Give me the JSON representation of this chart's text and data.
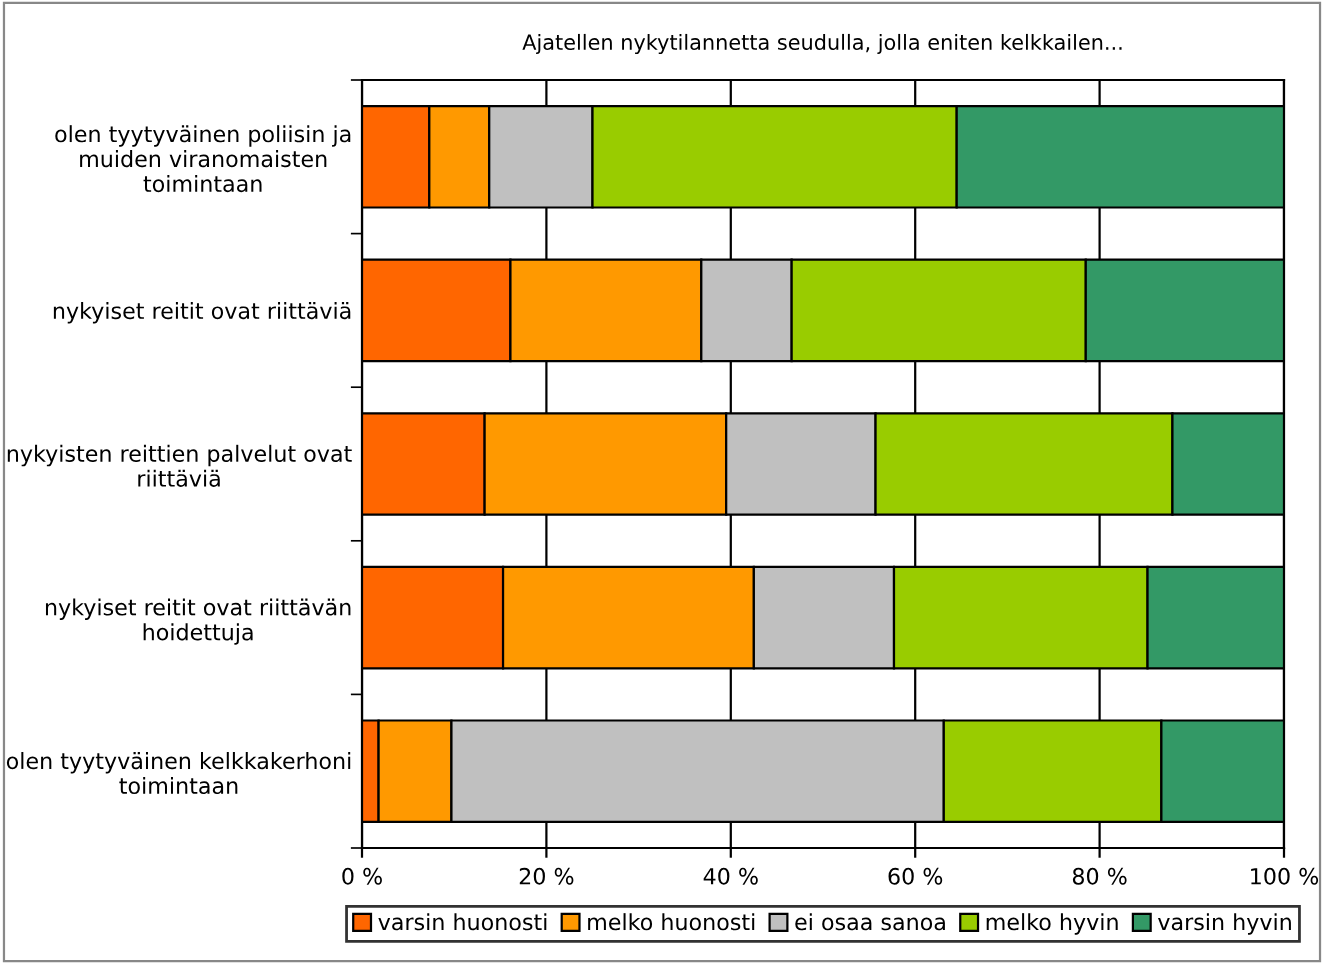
{
  "chart_data": {
    "type": "bar",
    "orientation": "horizontal",
    "stacked": true,
    "title": "Ajatellen nykytilannetta seudulla, jolla eniten kelkkailen...",
    "categories": [
      "olen tyytyväinen poliisin ja\nmuiden viranomaisten\ntoimintaan",
      "nykyiset reitit ovat riittäviä",
      "nykyisten reittien palvelut ovat\nriittäviä",
      "nykyiset reitit ovat riittävän\nhoidettuja",
      "olen tyytyväinen kelkkakerhoni\ntoimintaan"
    ],
    "series": [
      {
        "name": "varsin huonosti",
        "color": "#ff6600",
        "values": [
          7.3,
          16.1,
          13.3,
          15.3,
          1.8
        ]
      },
      {
        "name": "melko huonosti",
        "color": "#ff9900",
        "values": [
          6.5,
          20.7,
          26.2,
          27.2,
          7.9
        ]
      },
      {
        "name": "ei osaa sanoa",
        "color": "#c0c0c0",
        "values": [
          11.2,
          9.8,
          16.2,
          15.2,
          53.4
        ]
      },
      {
        "name": "melko hyvin",
        "color": "#99cc00",
        "values": [
          39.5,
          31.9,
          32.2,
          27.5,
          23.6
        ]
      },
      {
        "name": "varsin hyvin",
        "color": "#339966",
        "values": [
          35.5,
          21.5,
          12.1,
          14.8,
          13.3
        ]
      }
    ],
    "xlim": [
      0,
      100
    ],
    "xticks": [
      {
        "value": 0,
        "label": "0 %"
      },
      {
        "value": 20,
        "label": "20 %"
      },
      {
        "value": 40,
        "label": "40 %"
      },
      {
        "value": 60,
        "label": "60 %"
      },
      {
        "value": 80,
        "label": "80 %"
      },
      {
        "value": 100,
        "label": "100 %"
      }
    ],
    "grid": "x",
    "legend": "bottom"
  }
}
